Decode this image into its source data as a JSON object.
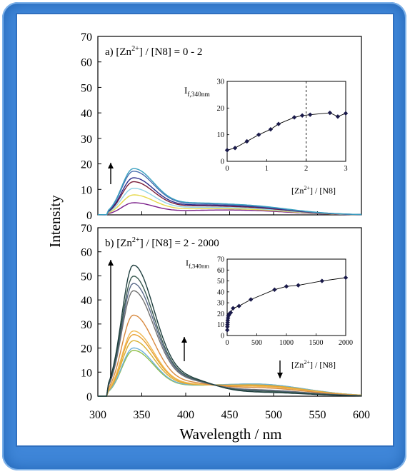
{
  "figure": {
    "xlabel": "Wavelength / nm",
    "ylabel": "Intensity",
    "x_ticks": [
      "300",
      "350",
      "400",
      "450",
      "500",
      "550",
      "600"
    ],
    "y_ticks_top": [
      "0",
      "10",
      "20",
      "30",
      "40",
      "50",
      "60",
      "70"
    ],
    "y_ticks_bottom": [
      "0",
      "10",
      "20",
      "30",
      "40",
      "50",
      "60",
      "70"
    ]
  },
  "chart_data": [
    {
      "type": "line",
      "panel": "a",
      "title_prefix": "a) [Zn",
      "title_sup": "2+",
      "title_suffix": "] / [N8] = 0 - 2",
      "xlim": [
        300,
        600
      ],
      "ylim": [
        0,
        70
      ],
      "peak_wavelength": 340,
      "second_band_center": 460,
      "series": [
        {
          "color": "#7a1f8a",
          "peak": 4.5,
          "shoulder": 1.8
        },
        {
          "color": "#e6d84a",
          "peak": 7.5,
          "shoulder": 2.2
        },
        {
          "color": "#8fd3e8",
          "peak": 10.0,
          "shoulder": 2.6
        },
        {
          "color": "#7a1f3a",
          "peak": 12.5,
          "shoulder": 3.0
        },
        {
          "color": "#2a2a8a",
          "peak": 14.0,
          "shoulder": 3.3
        },
        {
          "color": "#4a6fb0",
          "peak": 16.5,
          "shoulder": 3.6
        },
        {
          "color": "#3aa0c0",
          "peak": 17.5,
          "shoulder": 3.8
        }
      ],
      "annotation_arrow": "up",
      "inset": {
        "ylabel_main": "I",
        "ylabel_sub": "f,340nm",
        "xlabel_prefix": "[Zn",
        "xlabel_sup": "2+",
        "xlabel_suffix": "] / [N8]",
        "xlim": [
          0,
          3
        ],
        "ylim": [
          0,
          30
        ],
        "x_ticks": [
          "0",
          "1",
          "2",
          "3"
        ],
        "y_ticks": [
          "0",
          "10",
          "20",
          "30"
        ],
        "dashed_x": 2,
        "points": [
          [
            0.0,
            4.2
          ],
          [
            0.2,
            5.0
          ],
          [
            0.5,
            7.5
          ],
          [
            0.8,
            10.0
          ],
          [
            1.1,
            12.0
          ],
          [
            1.3,
            14.0
          ],
          [
            1.7,
            16.5
          ],
          [
            1.9,
            17.2
          ],
          [
            2.1,
            17.5
          ],
          [
            2.6,
            18.2
          ],
          [
            2.8,
            16.8
          ],
          [
            3.0,
            18.0
          ]
        ]
      }
    },
    {
      "type": "line",
      "panel": "b",
      "title_prefix": "b) [Zn",
      "title_sup": "2+",
      "title_suffix": "] / [N8] =  2 - 2000",
      "xlim": [
        300,
        600
      ],
      "ylim": [
        0,
        70
      ],
      "peak_wavelength": 340,
      "second_band_center": 480,
      "series": [
        {
          "color": "#8fbf4a",
          "peak": 18.5,
          "shoulder": 5.0
        },
        {
          "color": "#6fb0d8",
          "peak": 19.5,
          "shoulder": 5.0
        },
        {
          "color": "#d8b030",
          "peak": 22.5,
          "shoulder": 4.6
        },
        {
          "color": "#e8a030",
          "peak": 25.0,
          "shoulder": 4.3
        },
        {
          "color": "#f0b850",
          "peak": 26.5,
          "shoulder": 4.0
        },
        {
          "color": "#d88a40",
          "peak": 33.0,
          "shoulder": 3.5
        },
        {
          "color": "#707070",
          "peak": 43.0,
          "shoulder": 2.6
        },
        {
          "color": "#5a6a8a",
          "peak": 46.0,
          "shoulder": 2.3
        },
        {
          "color": "#3a5a50",
          "peak": 49.0,
          "shoulder": 2.0
        },
        {
          "color": "#1f3f3f",
          "peak": 53.5,
          "shoulder": 1.6
        }
      ],
      "annotation_arrows": [
        "up",
        "up",
        "down"
      ],
      "inset": {
        "ylabel_main": "I",
        "ylabel_sub": "f,340nm",
        "xlabel_prefix": "[Zn",
        "xlabel_sup": "2+",
        "xlabel_suffix": "] / [N8]",
        "xlim": [
          0,
          2000
        ],
        "ylim": [
          0,
          70
        ],
        "x_ticks": [
          "0",
          "500",
          "1000",
          "1500",
          "2000"
        ],
        "y_ticks": [
          "0",
          "10",
          "20",
          "30",
          "40",
          "50",
          "60",
          "70"
        ],
        "points": [
          [
            2,
            5
          ],
          [
            4,
            8
          ],
          [
            6,
            10
          ],
          [
            8,
            12
          ],
          [
            10,
            14
          ],
          [
            15,
            16
          ],
          [
            20,
            18
          ],
          [
            30,
            19
          ],
          [
            40,
            20
          ],
          [
            60,
            21
          ],
          [
            100,
            25
          ],
          [
            200,
            27
          ],
          [
            400,
            33
          ],
          [
            800,
            42
          ],
          [
            1000,
            45
          ],
          [
            1200,
            46
          ],
          [
            1600,
            50
          ],
          [
            2000,
            53
          ]
        ]
      }
    }
  ]
}
